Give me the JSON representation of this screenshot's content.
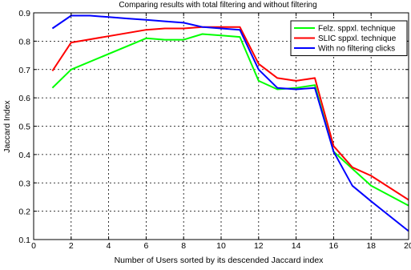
{
  "chart_data": {
    "type": "line",
    "title": "Comparing results with total filtering and without filtering",
    "xlabel": "Number of Users sorted by its descended Jaccard index",
    "ylabel": "Jaccard Index",
    "xlim": [
      0,
      20
    ],
    "ylim": [
      0.1,
      0.9
    ],
    "x_ticks": [
      "0",
      "2",
      "4",
      "6",
      "8",
      "10",
      "12",
      "14",
      "16",
      "18",
      "20"
    ],
    "y_ticks": [
      "0.1",
      "0.2",
      "0.3",
      "0.4",
      "0.5",
      "0.6",
      "0.7",
      "0.8",
      "0.9"
    ],
    "x_tick_values": [
      0,
      2,
      4,
      6,
      8,
      10,
      12,
      14,
      16,
      18,
      20
    ],
    "y_tick_values": [
      0.1,
      0.2,
      0.3,
      0.4,
      0.5,
      0.6,
      0.7,
      0.8,
      0.9
    ],
    "grid": true,
    "legend_position": "top-right",
    "series": [
      {
        "name": "Felz. sppxl. technique",
        "color": "#00ff00",
        "x": [
          1,
          2,
          6,
          7,
          8,
          9,
          10,
          11,
          12,
          13,
          14,
          15,
          16,
          17,
          18,
          20
        ],
        "y": [
          0.635,
          0.7,
          0.81,
          0.805,
          0.805,
          0.825,
          0.82,
          0.815,
          0.66,
          0.63,
          0.635,
          0.645,
          0.41,
          0.35,
          0.29,
          0.22
        ]
      },
      {
        "name": "SLIC sppxl. technique",
        "color": "#ff0000",
        "x": [
          1,
          2,
          6,
          7,
          8,
          9,
          10,
          11,
          12,
          13,
          14,
          15,
          16,
          17,
          18,
          20
        ],
        "y": [
          0.695,
          0.795,
          0.84,
          0.845,
          0.845,
          0.85,
          0.85,
          0.85,
          0.72,
          0.67,
          0.66,
          0.67,
          0.43,
          0.355,
          0.325,
          0.24
        ]
      },
      {
        "name": "With no filtering clicks",
        "color": "#0000ff",
        "x": [
          1,
          2,
          3,
          4,
          5,
          6,
          7,
          8,
          9,
          10,
          11,
          12,
          13,
          14,
          15,
          16,
          17,
          18,
          20
        ],
        "y": [
          0.845,
          0.89,
          0.89,
          0.885,
          0.88,
          0.875,
          0.87,
          0.865,
          0.85,
          0.845,
          0.84,
          0.7,
          0.635,
          0.63,
          0.635,
          0.41,
          0.29,
          0.235,
          0.13
        ]
      }
    ]
  }
}
